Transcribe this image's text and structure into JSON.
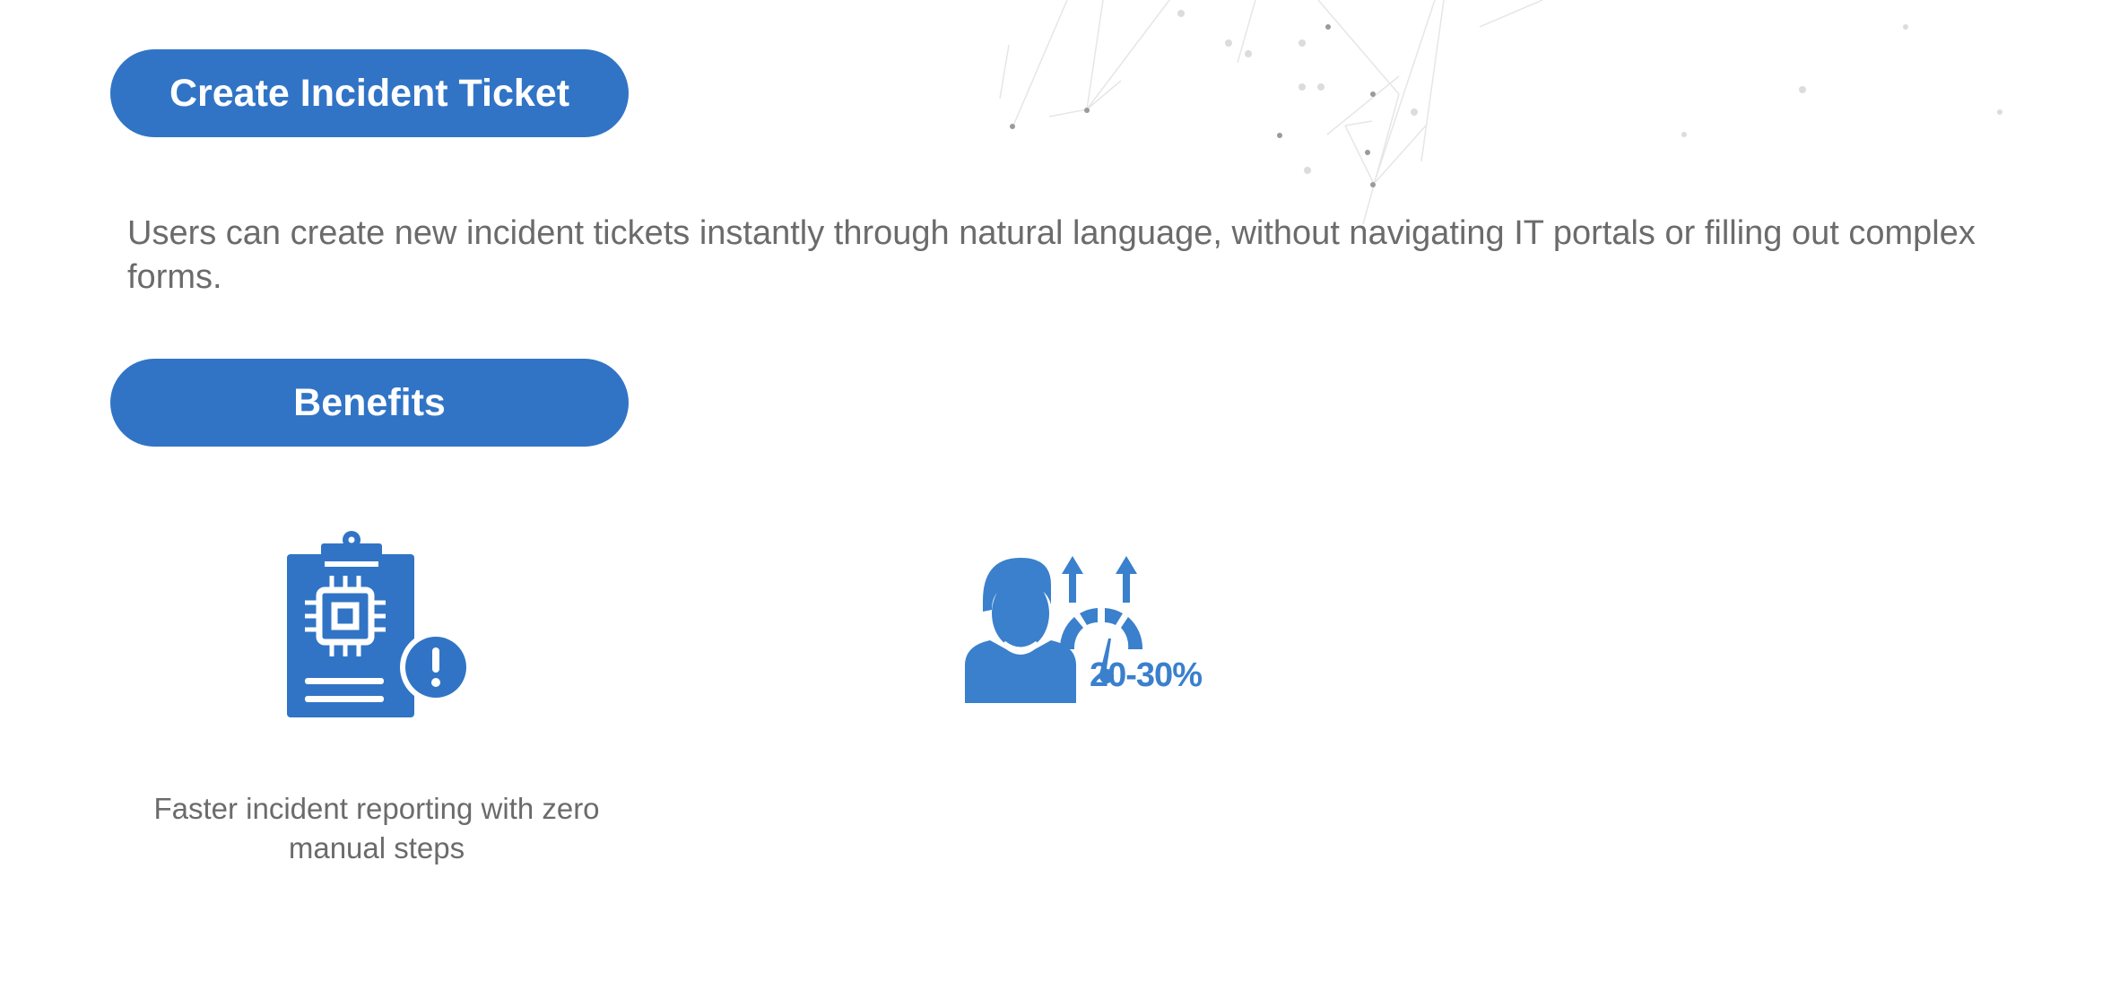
{
  "feature": {
    "title": "Create Incident Ticket",
    "description": "Users can create new incident tickets instantly through natural language, without navigating IT portals or filling out complex forms."
  },
  "benefits": {
    "title": "Benefits",
    "items": [
      {
        "icon": "clipboard-chip-alert-icon",
        "caption": "Faster incident reporting with zero manual steps"
      },
      {
        "icon": "user-productivity-gauge-icon",
        "badge": "20-30%",
        "caption": ""
      }
    ]
  },
  "colors": {
    "accent": "#3174c6",
    "text": "#6b6b6b"
  }
}
